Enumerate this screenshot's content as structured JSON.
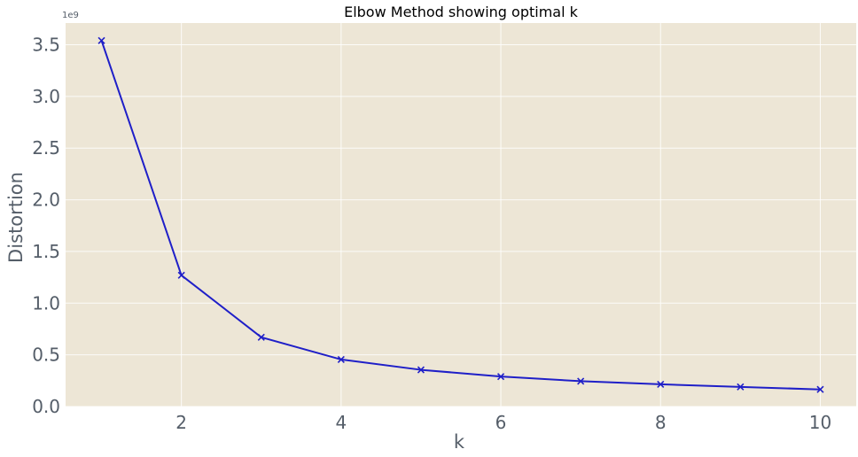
{
  "chart_data": {
    "type": "line",
    "title": "Elbow Method showing optimal k",
    "xlabel": "k",
    "ylabel": "Distortion",
    "y_scale_label": "1e9",
    "x": [
      1,
      2,
      3,
      4,
      5,
      6,
      7,
      8,
      9,
      10
    ],
    "series": [
      {
        "values": [
          3.54,
          1.27,
          0.67,
          0.455,
          0.355,
          0.29,
          0.245,
          0.215,
          0.19,
          0.165
        ],
        "marker": "x",
        "color": "#1f1fc8"
      }
    ],
    "xlim": [
      0.55,
      10.45
    ],
    "ylim": [
      0,
      3.71
    ],
    "xticks": [
      2,
      4,
      6,
      8,
      10
    ],
    "xtick_labels": [
      "2",
      "4",
      "6",
      "8",
      "10"
    ],
    "yticks": [
      0,
      0.5,
      1.0,
      1.5,
      2.0,
      2.5,
      3.0,
      3.5
    ],
    "ytick_labels": [
      "0.0",
      "0.5",
      "1.0",
      "1.5",
      "2.0",
      "2.5",
      "3.0",
      "3.5"
    ],
    "grid": true,
    "style": {
      "plot_background": "#ede6d6",
      "grid_color": "#ffffff",
      "text_color": "#555e69",
      "line_color": "#1f1fc8"
    }
  }
}
